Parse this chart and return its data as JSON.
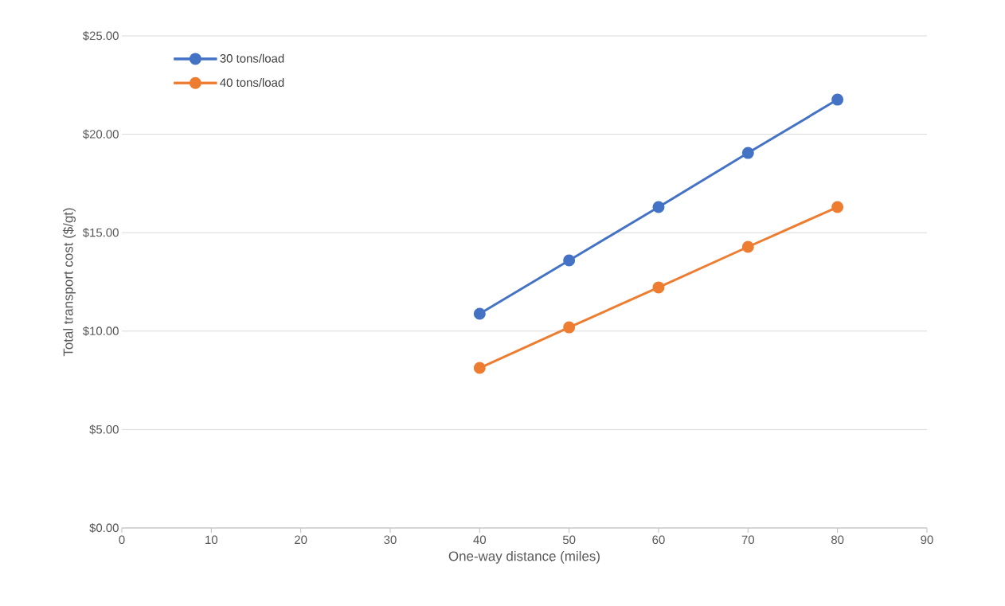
{
  "chart_data": {
    "type": "line",
    "xlabel": "One-way distance (miles)",
    "ylabel": "Total transport cost ($/gt)",
    "x": [
      40,
      50,
      60,
      70,
      80
    ],
    "series": [
      {
        "name": "30 tons/load",
        "color": "#4472c4",
        "values": [
          10.88,
          13.59,
          16.3,
          19.05,
          21.76
        ]
      },
      {
        "name": "40 tons/load",
        "color": "#ed7d31",
        "values": [
          8.13,
          10.19,
          12.22,
          14.28,
          16.3
        ]
      }
    ],
    "xlim": [
      0,
      90
    ],
    "xticks": [
      0,
      10,
      20,
      30,
      40,
      50,
      60,
      70,
      80,
      90
    ],
    "ylim": [
      0,
      25
    ],
    "yticks": [
      {
        "value": 0,
        "label": "$0.00"
      },
      {
        "value": 5,
        "label": "$5.00"
      },
      {
        "value": 10,
        "label": "$10.00"
      },
      {
        "value": 15,
        "label": "$15.00"
      },
      {
        "value": 20,
        "label": "$20.00"
      },
      {
        "value": 25,
        "label": "$25.00"
      }
    ],
    "grid": "y",
    "legend": "top left",
    "marker": "circle",
    "line_style": "solid"
  }
}
